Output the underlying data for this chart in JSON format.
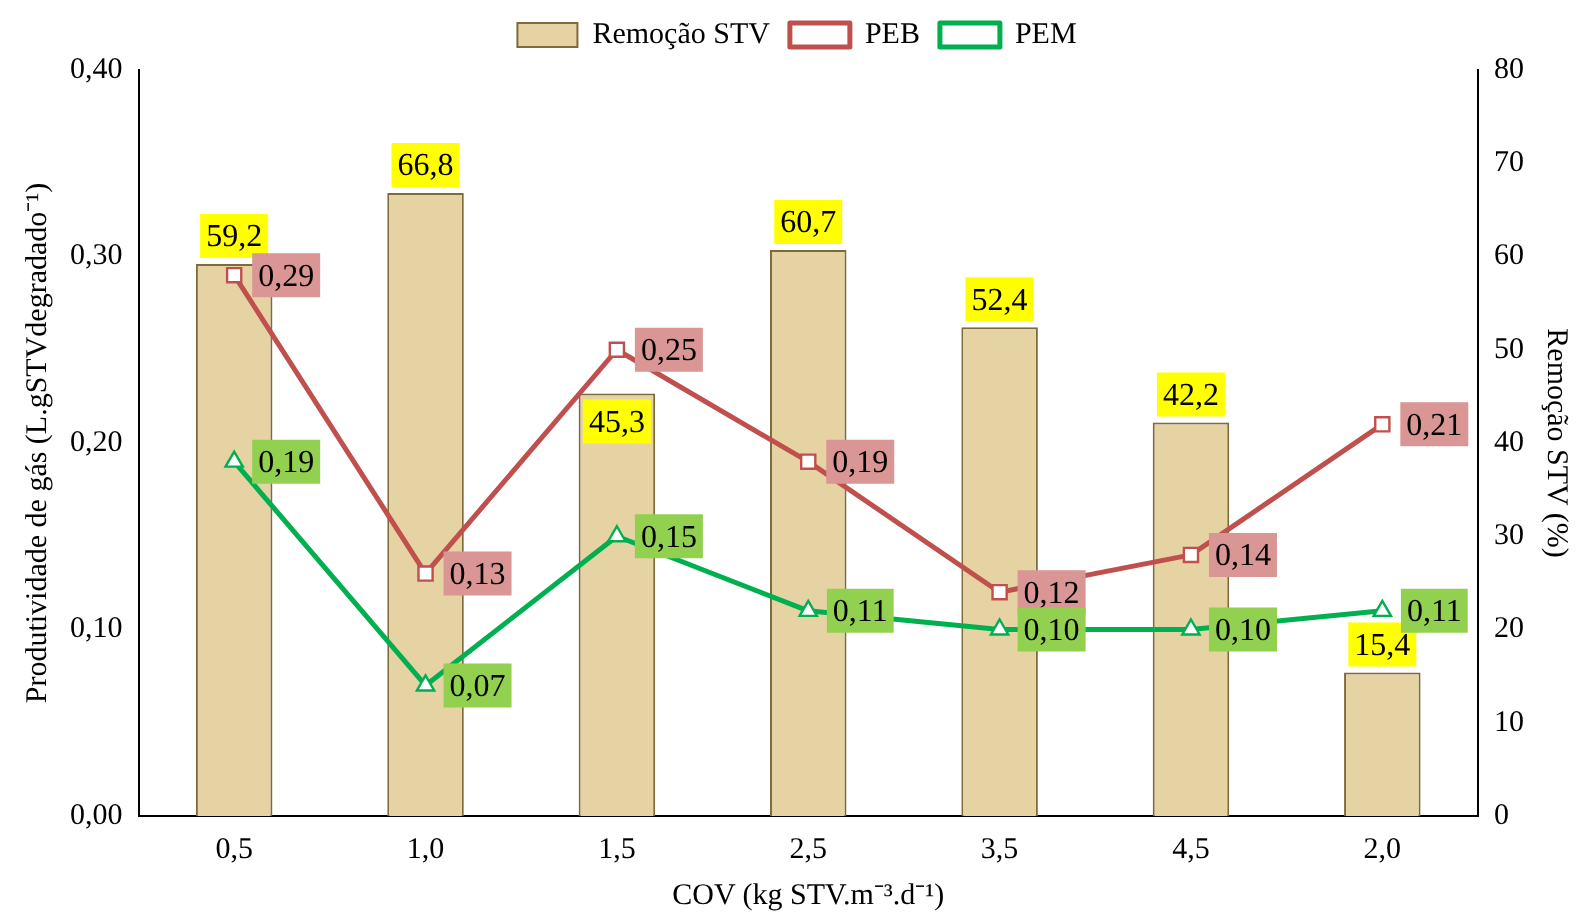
{
  "chart_data": {
    "type": "bar",
    "xlabel": "COV (kg STV.m⁻³.d⁻¹)",
    "ylabel": "Produtividade de gás (L.gSTVdegradado⁻¹)",
    "y2label": "Remoção STV (%)",
    "categories": [
      "0,5",
      "1,0",
      "1,5",
      "2,5",
      "3,5",
      "4,5",
      "2,0"
    ],
    "series": [
      {
        "name": "Remoção STV",
        "type": "bar",
        "axis": "y2",
        "color": "#e6d3a3",
        "values": [
          59.2,
          66.8,
          45.3,
          60.7,
          52.4,
          42.2,
          15.4
        ],
        "value_labels": [
          "59,2",
          "66,8",
          "45,3",
          "60,7",
          "52,4",
          "42,2",
          "15,4"
        ]
      },
      {
        "name": "PEB",
        "type": "line",
        "marker": "square",
        "color": "#c0504d",
        "values": [
          0.29,
          0.13,
          0.25,
          0.19,
          0.12,
          0.14,
          0.21
        ],
        "value_labels": [
          "0,29",
          "0,13",
          "0,25",
          "0,19",
          "0,12",
          "0,14",
          "0,21"
        ]
      },
      {
        "name": "PEM",
        "type": "line",
        "marker": "triangle",
        "color": "#00b050",
        "values": [
          0.19,
          0.07,
          0.15,
          0.11,
          0.1,
          0.1,
          0.11
        ],
        "value_labels": [
          "0,19",
          "0,07",
          "0,15",
          "0,11",
          "0,10",
          "0,10",
          "0,11"
        ]
      }
    ],
    "ylim": [
      0,
      0.4
    ],
    "yticks": [
      {
        "value": 0,
        "label": "0,00"
      },
      {
        "value": 0.1,
        "label": "0,10"
      },
      {
        "value": 0.2,
        "label": "0,20"
      },
      {
        "value": 0.3,
        "label": "0,30"
      },
      {
        "value": 0.4,
        "label": "0,40"
      }
    ],
    "y2lim": [
      0,
      80
    ],
    "y2ticks": [
      0,
      10,
      20,
      30,
      40,
      50,
      60,
      70,
      80
    ],
    "grid": false,
    "legend": "top"
  }
}
